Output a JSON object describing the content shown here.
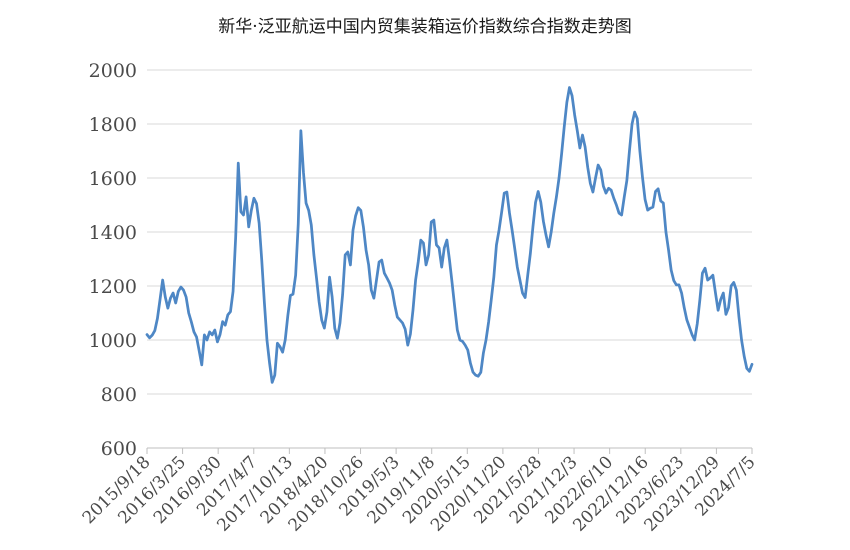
{
  "page": {
    "background": "#ffffff"
  },
  "chart_data": {
    "type": "line",
    "title": "新华·泛亚航运中国内贸集装箱运价指数综合指数走势图",
    "xlabel": "",
    "ylabel": "",
    "ylim": [
      600,
      2000
    ],
    "yticks": [
      2000,
      1800,
      1600,
      1400,
      1200,
      1000,
      800,
      600
    ],
    "grid": true,
    "legend": "none",
    "series_color": "#4e87c5",
    "grid_color": "#d9d9d9",
    "axis_color": "#bfbfbf",
    "label_color": "#4a4a4a",
    "title_color": "#1a1a1a",
    "x_labels": [
      "2015/9/18",
      "2016/3/25",
      "2016/9/30",
      "2017/4/7",
      "2017/10/13",
      "2018/4/20",
      "2018/10/26",
      "2019/5/3",
      "2019/11/8",
      "2020/5/15",
      "2020/11/20",
      "2021/5/28",
      "2021/12/3",
      "2022/6/10",
      "2022/12/16",
      "2023/6/23",
      "2023/12/29",
      "2024/7/5"
    ],
    "values": [
      1020,
      1008,
      1018,
      1035,
      1080,
      1150,
      1222,
      1160,
      1118,
      1155,
      1174,
      1137,
      1180,
      1196,
      1185,
      1159,
      1100,
      1067,
      1030,
      1011,
      960,
      908,
      1019,
      1000,
      1030,
      1019,
      1037,
      993,
      1020,
      1068,
      1055,
      1093,
      1105,
      1180,
      1380,
      1655,
      1475,
      1463,
      1530,
      1419,
      1480,
      1525,
      1505,
      1433,
      1296,
      1140,
      1000,
      915,
      843,
      870,
      988,
      975,
      955,
      1000,
      1090,
      1165,
      1170,
      1240,
      1430,
      1775,
      1620,
      1507,
      1480,
      1426,
      1315,
      1230,
      1141,
      1074,
      1044,
      1104,
      1233,
      1159,
      1044,
      1007,
      1063,
      1167,
      1315,
      1326,
      1278,
      1407,
      1460,
      1490,
      1480,
      1418,
      1333,
      1278,
      1185,
      1155,
      1222,
      1289,
      1296,
      1248,
      1230,
      1211,
      1185,
      1130,
      1085,
      1074,
      1063,
      1040,
      981,
      1022,
      1111,
      1222,
      1289,
      1370,
      1359,
      1278,
      1315,
      1437,
      1444,
      1352,
      1341,
      1270,
      1341,
      1370,
      1296,
      1211,
      1122,
      1037,
      1000,
      995,
      981,
      963,
      915,
      881,
      870,
      866,
      880,
      952,
      1000,
      1067,
      1148,
      1233,
      1352,
      1407,
      1474,
      1544,
      1548,
      1470,
      1407,
      1340,
      1270,
      1222,
      1174,
      1157,
      1240,
      1320,
      1420,
      1510,
      1550,
      1511,
      1440,
      1389,
      1345,
      1400,
      1470,
      1530,
      1600,
      1690,
      1790,
      1880,
      1935,
      1905,
      1833,
      1775,
      1711,
      1759,
      1715,
      1640,
      1580,
      1548,
      1600,
      1648,
      1630,
      1570,
      1544,
      1562,
      1555,
      1525,
      1500,
      1470,
      1463,
      1529,
      1590,
      1700,
      1800,
      1844,
      1820,
      1700,
      1603,
      1520,
      1481,
      1488,
      1492,
      1550,
      1560,
      1515,
      1507,
      1400,
      1333,
      1259,
      1220,
      1204,
      1204,
      1174,
      1120,
      1075,
      1048,
      1020,
      1000,
      1060,
      1148,
      1248,
      1266,
      1222,
      1230,
      1240,
      1174,
      1110,
      1150,
      1174,
      1095,
      1120,
      1200,
      1213,
      1185,
      1085,
      1000,
      940,
      895,
      884,
      910
    ]
  }
}
